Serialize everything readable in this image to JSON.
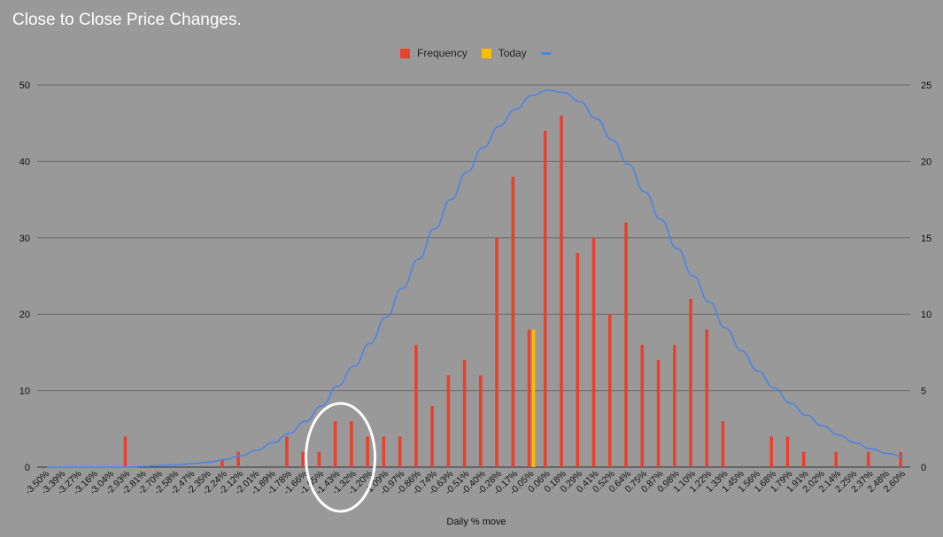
{
  "chart_data": {
    "type": "bar",
    "title": "Close to Close Price Changes.",
    "xlabel": "Daily % move",
    "ylabel": "",
    "ylim": [
      0,
      50
    ],
    "y2lim": [
      0,
      25
    ],
    "y_ticks": [
      0,
      10,
      20,
      30,
      40,
      50
    ],
    "y2_ticks": [
      0,
      5,
      10,
      15,
      20,
      25
    ],
    "grid": true,
    "legend_position": "top-center",
    "categories": [
      "-3.50%",
      "-3.39%",
      "-3.27%",
      "-3.16%",
      "-3.04%",
      "-2.93%",
      "-2.81%",
      "-2.70%",
      "-2.58%",
      "-2.47%",
      "-2.35%",
      "-2.24%",
      "-2.12%",
      "-2.01%",
      "-1.89%",
      "-1.78%",
      "-1.66%",
      "-1.55%",
      "-1.43%",
      "-1.32%",
      "-1.20%",
      "-1.09%",
      "-0.97%",
      "-0.86%",
      "-0.74%",
      "-0.63%",
      "-0.51%",
      "-0.40%",
      "-0.28%",
      "-0.17%",
      "-0.05%",
      "0.06%",
      "0.18%",
      "0.29%",
      "0.41%",
      "0.52%",
      "0.64%",
      "0.75%",
      "0.87%",
      "0.98%",
      "1.10%",
      "1.22%",
      "1.33%",
      "1.45%",
      "1.56%",
      "1.68%",
      "1.79%",
      "1.91%",
      "2.02%",
      "2.14%",
      "2.25%",
      "2.37%",
      "2.48%",
      "2.60%"
    ],
    "series": [
      {
        "name": "Frequency",
        "type": "bar",
        "color": "#e8412e",
        "values": [
          0,
          0,
          0,
          0,
          0,
          4,
          0,
          0,
          0,
          0,
          0,
          1,
          2,
          0,
          0,
          4,
          2,
          2,
          6,
          6,
          4,
          4,
          4,
          16,
          8,
          12,
          14,
          12,
          30,
          38,
          18,
          44,
          46,
          28,
          30,
          20,
          32,
          16,
          14,
          16,
          22,
          18,
          6,
          0,
          0,
          4,
          4,
          2,
          0,
          2,
          0,
          2,
          0,
          2
        ]
      },
      {
        "name": "Today",
        "type": "bar",
        "color": "#fbbc04",
        "values": [
          0,
          0,
          0,
          0,
          0,
          0,
          0,
          0,
          0,
          0,
          0,
          0,
          0,
          0,
          0,
          0,
          0,
          0,
          0,
          0,
          0,
          0,
          0,
          0,
          0,
          0,
          0,
          0,
          0,
          0,
          18,
          0,
          0,
          0,
          0,
          0,
          0,
          0,
          0,
          0,
          0,
          0,
          0,
          0,
          0,
          0,
          0,
          0,
          0,
          0,
          0,
          0,
          0,
          0
        ]
      },
      {
        "name": "",
        "type": "line",
        "axis": "right",
        "color": "#4a86e8",
        "values": [
          0,
          0,
          0,
          0,
          0,
          0,
          0.05,
          0.1,
          0.15,
          0.22,
          0.32,
          0.5,
          0.75,
          1.1,
          1.6,
          2.2,
          3,
          4,
          5.3,
          6.6,
          8.1,
          9.8,
          11.7,
          13.6,
          15.6,
          17.5,
          19.3,
          20.9,
          22.3,
          23.4,
          24.3,
          24.65,
          24.5,
          23.9,
          22.8,
          21.4,
          19.8,
          18,
          16.2,
          14.3,
          12.5,
          10.8,
          9.1,
          7.6,
          6.3,
          5.2,
          4.2,
          3.4,
          2.7,
          2.1,
          1.6,
          1.2,
          0.9,
          0.7
        ]
      }
    ],
    "annotations": [
      {
        "type": "ellipse",
        "around_category_range": [
          "-1.55%",
          "-1.20%"
        ],
        "color": "#ffffff"
      }
    ]
  }
}
